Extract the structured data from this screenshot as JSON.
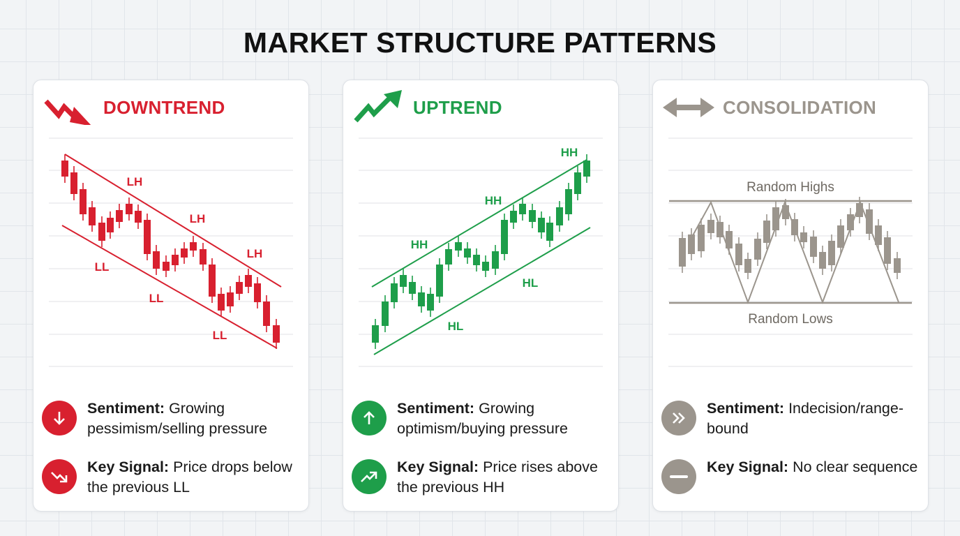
{
  "title": "MARKET STRUCTURE PATTERNS",
  "colors": {
    "downtrend": "#d8202f",
    "uptrend": "#1e9e4a",
    "consolidation": "#9b958d"
  },
  "cards": [
    {
      "id": "downtrend",
      "heading": "DOWNTREND",
      "icon": "zigzag-down-arrow-icon",
      "labels": [
        "LH",
        "LH",
        "LH",
        "LL",
        "LL",
        "LL"
      ],
      "items": [
        {
          "icon": "arrow-down-icon",
          "label": "Sentiment:",
          "text": " Growing pessimism/selling pressure"
        },
        {
          "icon": "trend-down-icon",
          "label": "Key Signal:",
          "text": " Price drops below the previous LL"
        }
      ]
    },
    {
      "id": "uptrend",
      "heading": "UPTREND",
      "icon": "zigzag-up-arrow-icon",
      "labels": [
        "HH",
        "HH",
        "HH",
        "HL",
        "HL"
      ],
      "items": [
        {
          "icon": "arrow-up-icon",
          "label": "Sentiment:",
          "text": " Growing optimism/buying pressure"
        },
        {
          "icon": "trend-up-icon",
          "label": "Key Signal:",
          "text": " Price rises above the previous HH"
        }
      ]
    },
    {
      "id": "consolidation",
      "heading": "CONSOLIDATION",
      "icon": "double-arrow-horizontal-icon",
      "labels": [
        "Random Highs",
        "Random Lows"
      ],
      "items": [
        {
          "icon": "double-chevron-right-icon",
          "label": "Sentiment:",
          "text": " Indecision/range-bound"
        },
        {
          "icon": "minus-icon",
          "label": "Key Signal:",
          "text": " No clear sequence"
        }
      ]
    }
  ]
}
